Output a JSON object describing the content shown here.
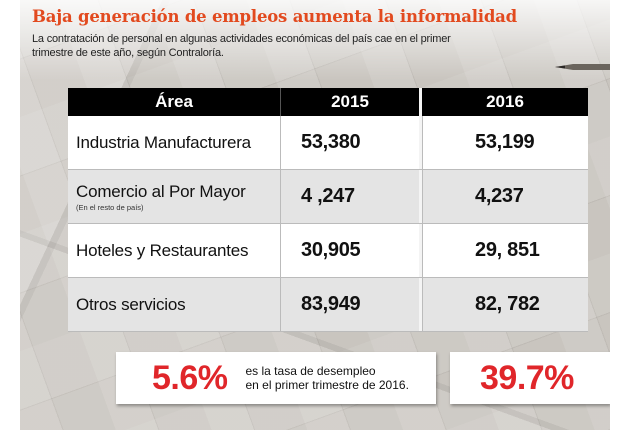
{
  "title": "Baja generación de empleos aumenta la informalidad",
  "subtitle": "La contratación de personal en algunas actividades económicas del país cae en el primer trimestre de este año, según Contraloría.",
  "table": {
    "headers": {
      "area": "Área",
      "year1": "2015",
      "year2": "2016"
    },
    "rows": [
      {
        "area": "Industria Manufacturera",
        "note": "",
        "v2015": "53,380",
        "v2016": "53,199"
      },
      {
        "area": "Comercio al Por Mayor",
        "note": "(En el resto de país)",
        "v2015": "4 ,247",
        "v2016": "4,237"
      },
      {
        "area": "Hoteles y Restaurantes",
        "note": "",
        "v2015": "30,905",
        "v2016": "29, 851"
      },
      {
        "area": "Otros servicios",
        "note": "",
        "v2015": "83,949",
        "v2016": "82, 782"
      }
    ]
  },
  "stats": {
    "left_value": "5.6%",
    "left_text_line1": "es la tasa de desempleo",
    "left_text_line2": "en el primer trimestre de 2016.",
    "right_value": "39.7%"
  },
  "colors": {
    "title": "#e24a1f",
    "header_bg": "#000000",
    "stat_value": "#e0262a",
    "row_alt": "#e4e4e4"
  },
  "icons": {
    "top_right": "pencil-icon"
  }
}
